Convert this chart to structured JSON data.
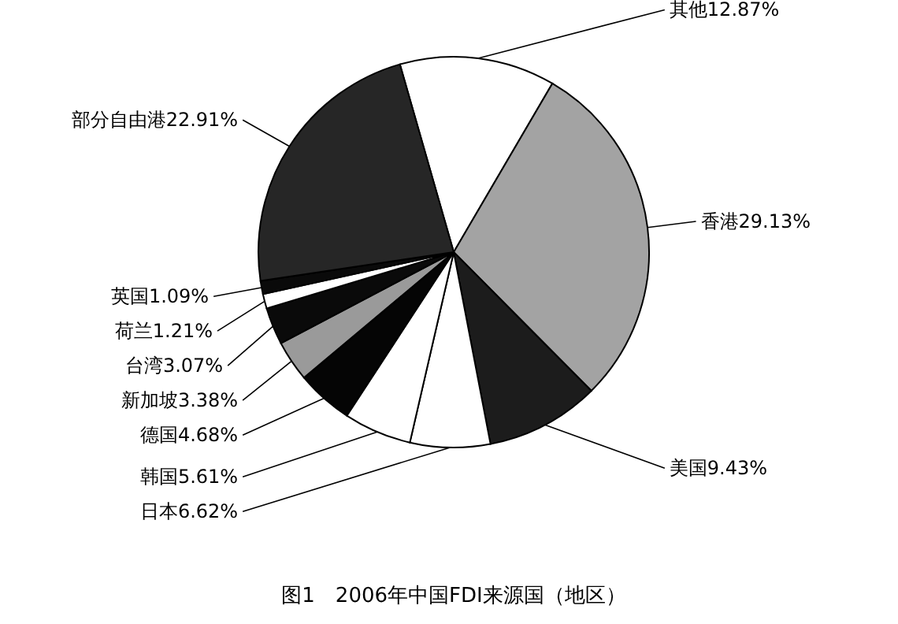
{
  "chart_data": {
    "type": "pie",
    "title": "图1　2006年中国FDI来源国（地区）",
    "categories": [
      "其他",
      "香港",
      "美国",
      "日本",
      "韩国",
      "德国",
      "新加坡",
      "台湾",
      "荷兰",
      "英国",
      "部分自由港"
    ],
    "values": [
      12.87,
      29.13,
      9.43,
      6.62,
      5.61,
      4.68,
      3.38,
      3.07,
      1.21,
      1.09,
      22.91
    ],
    "colors": [
      "#ffffff",
      "#a3a3a3",
      "#1c1c1c",
      "#ffffff",
      "#ffffff",
      "#050505",
      "#9a9a9a",
      "#0a0a0a",
      "#ffffff",
      "#0a0a0a",
      "#262626"
    ],
    "value_labels": [
      "12.87%",
      "29.13%",
      "9.43%",
      "6.62%",
      "5.61%",
      "4.68%",
      "3.38%",
      "3.07%",
      "1.21%",
      "1.09%",
      "22.91%"
    ]
  }
}
